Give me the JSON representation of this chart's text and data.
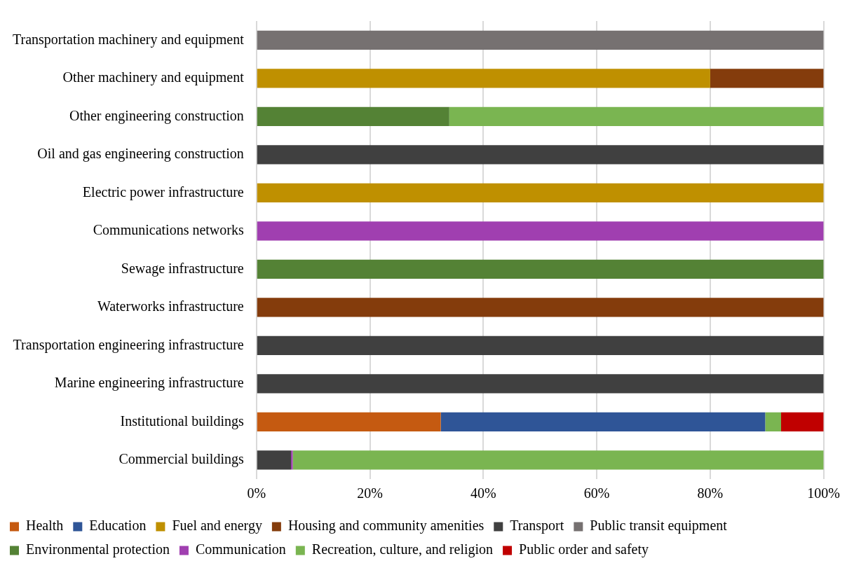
{
  "chart_data": {
    "type": "bar",
    "orientation": "horizontal",
    "stacked": true,
    "categories": [
      "Transportation machinery and equipment",
      "Other machinery and equipment",
      "Other engineering construction",
      "Oil and gas engineering construction",
      "Electric power infrastructure",
      "Communications networks",
      "Sewage infrastructure",
      "Waterworks infrastructure",
      "Transportation engineering infrastructure",
      "Marine engineering infrastructure",
      "Institutional buildings",
      "Commercial buildings"
    ],
    "series": [
      {
        "name": "Health",
        "color": "#c55a11",
        "values": [
          null,
          null,
          null,
          null,
          null,
          null,
          null,
          null,
          null,
          null,
          32.5,
          null
        ]
      },
      {
        "name": "Education",
        "color": "#2f5597",
        "values": [
          null,
          null,
          null,
          null,
          null,
          null,
          null,
          null,
          null,
          null,
          57.2,
          null
        ]
      },
      {
        "name": "Fuel and energy",
        "color": "#bf9000",
        "values": [
          null,
          80,
          null,
          null,
          100,
          null,
          null,
          null,
          null,
          null,
          null,
          null
        ]
      },
      {
        "name": "Housing and community amenities",
        "color": "#843c0c",
        "values": [
          null,
          20,
          null,
          null,
          null,
          null,
          null,
          100,
          null,
          null,
          null,
          null
        ]
      },
      {
        "name": "Transport",
        "color": "#404040",
        "values": [
          null,
          null,
          null,
          100,
          null,
          null,
          null,
          null,
          100,
          100,
          null,
          6.1
        ]
      },
      {
        "name": "Public transit equipment",
        "color": "#767171",
        "values": [
          100,
          null,
          null,
          null,
          null,
          null,
          null,
          null,
          null,
          null,
          null,
          null
        ]
      },
      {
        "name": "Environmental protection",
        "color": "#548235",
        "values": [
          null,
          null,
          34,
          null,
          null,
          null,
          100,
          null,
          null,
          null,
          null,
          null
        ]
      },
      {
        "name": "Communication",
        "color": "#a03fb0",
        "values": [
          null,
          null,
          null,
          null,
          null,
          100,
          null,
          null,
          null,
          null,
          null,
          0.3
        ]
      },
      {
        "name": "Recreation, culture, and religion",
        "color": "#7ab551",
        "values": [
          null,
          null,
          66,
          null,
          null,
          null,
          null,
          null,
          null,
          null,
          2.8,
          93.6
        ]
      },
      {
        "name": "Public order and safety",
        "color": "#c00000",
        "values": [
          null,
          null,
          null,
          null,
          null,
          null,
          null,
          null,
          null,
          null,
          7.5,
          null
        ]
      }
    ],
    "xlim": [
      0,
      100
    ],
    "xticks": [
      {
        "value": 0,
        "label": "0%"
      },
      {
        "value": 20,
        "label": "20%"
      },
      {
        "value": 40,
        "label": "40%"
      },
      {
        "value": 60,
        "label": "60%"
      },
      {
        "value": 80,
        "label": "80%"
      },
      {
        "value": 100,
        "label": "100%"
      }
    ],
    "grid": "x",
    "legend": "bottom"
  }
}
